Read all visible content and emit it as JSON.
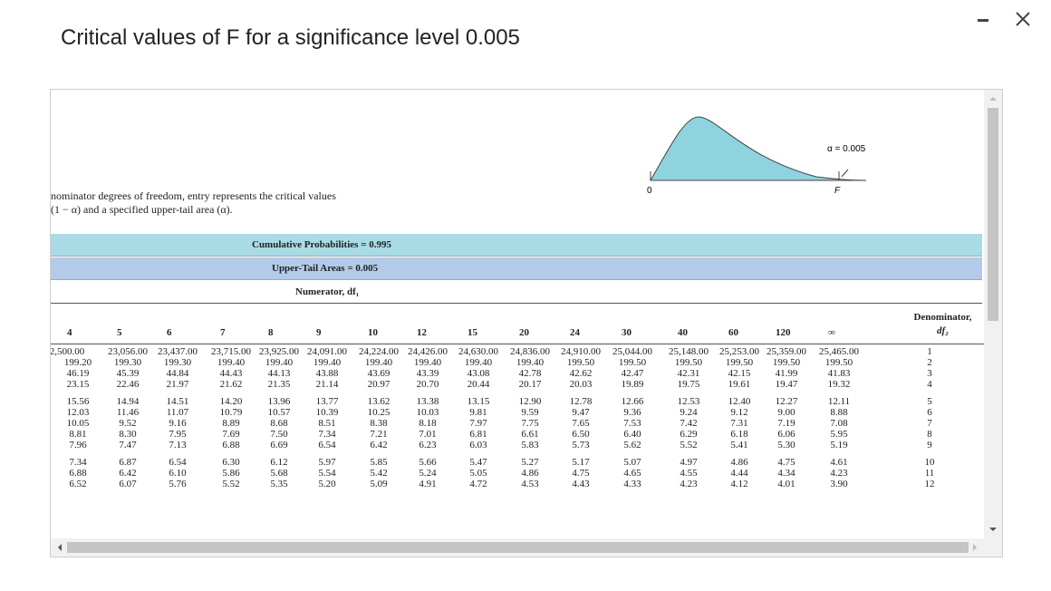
{
  "dialog": {
    "title": "Critical values of F for a significance level 0.005"
  },
  "icons": {
    "minimize": "minimize-icon",
    "close": "close-icon"
  },
  "figure": {
    "alpha_label": "α = 0.005",
    "zero_label": "0",
    "f_label": "F",
    "curve_fill": "#8fd3df",
    "tail_fill": "#7fa6d8"
  },
  "description": {
    "line1": "nominator degrees of freedom, entry represents the critical values",
    "line2": "(1 − α) and a specified upper-tail area (α)."
  },
  "bands": {
    "cumulative": "Cumulative Probabilities = 0.995",
    "upper_tail": "Upper-Tail Areas = 0.005",
    "numerator": "Numerator, df₁"
  },
  "colors": {
    "cumulative_band": "#a9dbe6",
    "upper_band": "#b3cbe8"
  },
  "table": {
    "denominator_header_line1": "Denominator,",
    "denominator_header_line2": "df₂",
    "columns": [
      "4",
      "5",
      "6",
      "7",
      "8",
      "9",
      "10",
      "12",
      "15",
      "20",
      "24",
      "30",
      "40",
      "60",
      "120",
      "∞"
    ],
    "rows": [
      {
        "df2": "1",
        "values": [
          "2,500.00",
          "23,056.00",
          "23,437.00",
          "23,715.00",
          "23,925.00",
          "24,091.00",
          "24,224.00",
          "24,426.00",
          "24,630.00",
          "24,836.00",
          "24,910.00",
          "25,044.00",
          "25,148.00",
          "25,253.00",
          "25,359.00",
          "25,465.00"
        ]
      },
      {
        "df2": "2",
        "values": [
          "199.20",
          "199.30",
          "199.30",
          "199.40",
          "199.40",
          "199.40",
          "199.40",
          "199.40",
          "199.40",
          "199.40",
          "199.50",
          "199.50",
          "199.50",
          "199.50",
          "199.50",
          "199.50"
        ]
      },
      {
        "df2": "3",
        "values": [
          "46.19",
          "45.39",
          "44.84",
          "44.43",
          "44.13",
          "43.88",
          "43.69",
          "43.39",
          "43.08",
          "42.78",
          "42.62",
          "42.47",
          "42.31",
          "42.15",
          "41.99",
          "41.83"
        ]
      },
      {
        "df2": "4",
        "values": [
          "23.15",
          "22.46",
          "21.97",
          "21.62",
          "21.35",
          "21.14",
          "20.97",
          "20.70",
          "20.44",
          "20.17",
          "20.03",
          "19.89",
          "19.75",
          "19.61",
          "19.47",
          "19.32"
        ]
      },
      {
        "df2": "5",
        "values": [
          "15.56",
          "14.94",
          "14.51",
          "14.20",
          "13.96",
          "13.77",
          "13.62",
          "13.38",
          "13.15",
          "12.90",
          "12.78",
          "12.66",
          "12.53",
          "12.40",
          "12.27",
          "12.11"
        ]
      },
      {
        "df2": "6",
        "values": [
          "12.03",
          "11.46",
          "11.07",
          "10.79",
          "10.57",
          "10.39",
          "10.25",
          "10.03",
          "9.81",
          "9.59",
          "9.47",
          "9.36",
          "9.24",
          "9.12",
          "9.00",
          "8.88"
        ]
      },
      {
        "df2": "7",
        "values": [
          "10.05",
          "9.52",
          "9.16",
          "8.89",
          "8.68",
          "8.51",
          "8.38",
          "8.18",
          "7.97",
          "7.75",
          "7.65",
          "7.53",
          "7.42",
          "7.31",
          "7.19",
          "7.08"
        ]
      },
      {
        "df2": "8",
        "values": [
          "8.81",
          "8.30",
          "7.95",
          "7.69",
          "7.50",
          "7.34",
          "7.21",
          "7.01",
          "6.81",
          "6.61",
          "6.50",
          "6.40",
          "6.29",
          "6.18",
          "6.06",
          "5.95"
        ]
      },
      {
        "df2": "9",
        "values": [
          "7.96",
          "7.47",
          "7.13",
          "6.88",
          "6.69",
          "6.54",
          "6.42",
          "6.23",
          "6.03",
          "5.83",
          "5.73",
          "5.62",
          "5.52",
          "5.41",
          "5.30",
          "5.19"
        ]
      },
      {
        "df2": "10",
        "values": [
          "7.34",
          "6.87",
          "6.54",
          "6.30",
          "6.12",
          "5.97",
          "5.85",
          "5.66",
          "5.47",
          "5.27",
          "5.17",
          "5.07",
          "4.97",
          "4.86",
          "4.75",
          "4.61"
        ]
      },
      {
        "df2": "11",
        "values": [
          "6.88",
          "6.42",
          "6.10",
          "5.86",
          "5.68",
          "5.54",
          "5.42",
          "5.24",
          "5.05",
          "4.86",
          "4.75",
          "4.65",
          "4.55",
          "4.44",
          "4.34",
          "4.23"
        ]
      },
      {
        "df2": "12",
        "values": [
          "6.52",
          "6.07",
          "5.76",
          "5.52",
          "5.35",
          "5.20",
          "5.09",
          "4.91",
          "4.72",
          "4.53",
          "4.43",
          "4.33",
          "4.23",
          "4.12",
          "4.01",
          "3.90"
        ]
      }
    ]
  }
}
